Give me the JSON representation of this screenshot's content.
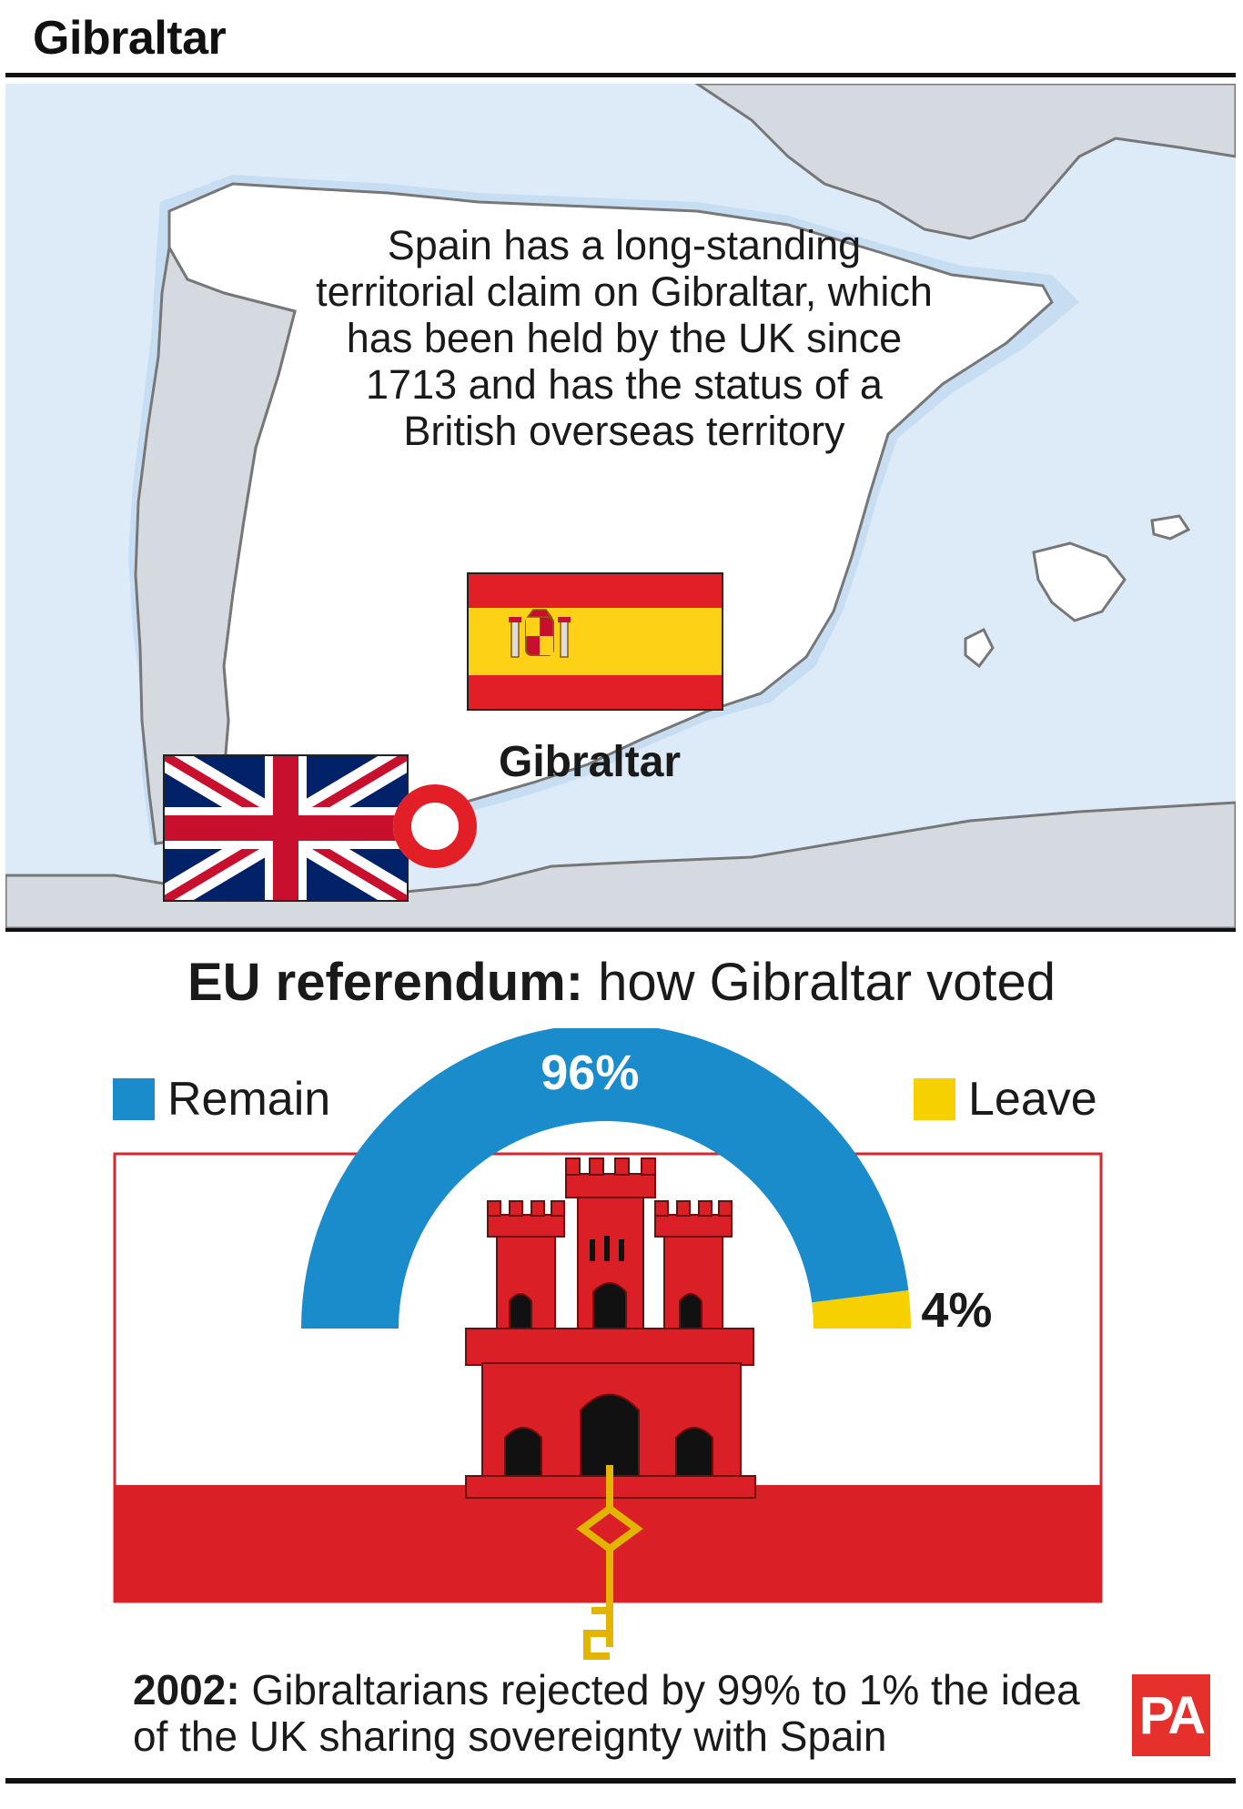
{
  "header": {
    "title": "Gibraltar"
  },
  "map": {
    "note": "Spain has a long-standing territorial claim on Gibraltar, which has been held by the UK since 1713 and has the status of a British overseas territory",
    "location_label": "Gibraltar",
    "colors": {
      "sea": "#dcebf7",
      "land_spain": "#ffffff",
      "land_other": "#d5d9e0",
      "border": "#777777"
    },
    "icons": [
      "spain-flag-icon",
      "uk-flag-icon",
      "location-marker-icon"
    ]
  },
  "referendum": {
    "title_bold": "EU referendum:",
    "title_rest": " how Gibraltar voted",
    "footnote_bold": "2002:",
    "footnote_rest": " Gibraltarians rejected by 99% to 1% the idea of the UK sharing sovereignty with Spain",
    "brand": "PA",
    "icons": [
      "gibraltar-flag-icon",
      "castle-icon",
      "key-icon"
    ]
  },
  "chart_data": {
    "type": "pie",
    "subtype": "half-donut",
    "title": "EU referendum: how Gibraltar voted",
    "categories": [
      "Remain",
      "Leave"
    ],
    "values": [
      96,
      4
    ],
    "labels": [
      "96%",
      "4%"
    ],
    "unit": "%",
    "colors": [
      "#1a8ccc",
      "#f7d000"
    ],
    "legend": "top-left and top-right"
  }
}
